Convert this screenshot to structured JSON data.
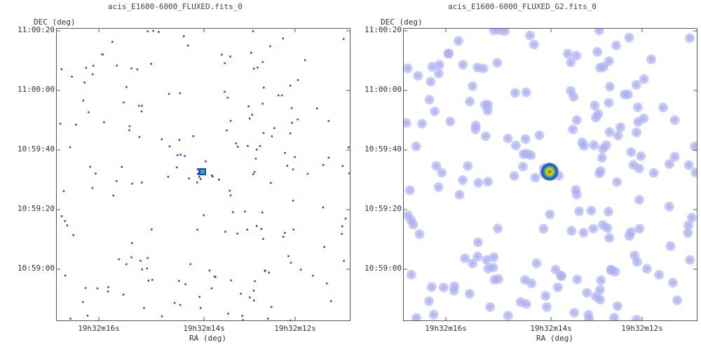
{
  "panels": [
    {
      "title": "acis_E1600-6000_FLUXED.fits_0",
      "ylabel": "DEC (deg)",
      "xlabel": "RA (deg)",
      "yticks": [
        "11:00:20",
        "11:00:00",
        "10:59:40",
        "10:59:20",
        "10:59:00"
      ],
      "xticks": [
        "19h32m16s",
        "19h32m14s",
        "19h32m12s"
      ]
    },
    {
      "title": "acis_E1600-6000_FLUXED_G2.fits_0",
      "ylabel": "DEC (deg)",
      "xlabel": "RA (deg)",
      "yticks": [
        "11:00:20",
        "11:00:00",
        "10:59:40",
        "10:59:20",
        "10:59:00"
      ],
      "xticks": [
        "19h32m16s",
        "19h32m14s",
        "19h32m12s"
      ]
    }
  ],
  "colors": {
    "event": "#3a3ad6",
    "smoothed_event": "#aab0f2",
    "source_core": "#e81a1a",
    "source_mid": "#f5d000",
    "source_outer": "#22c46a",
    "source_halo": "#2a3fe0"
  }
}
